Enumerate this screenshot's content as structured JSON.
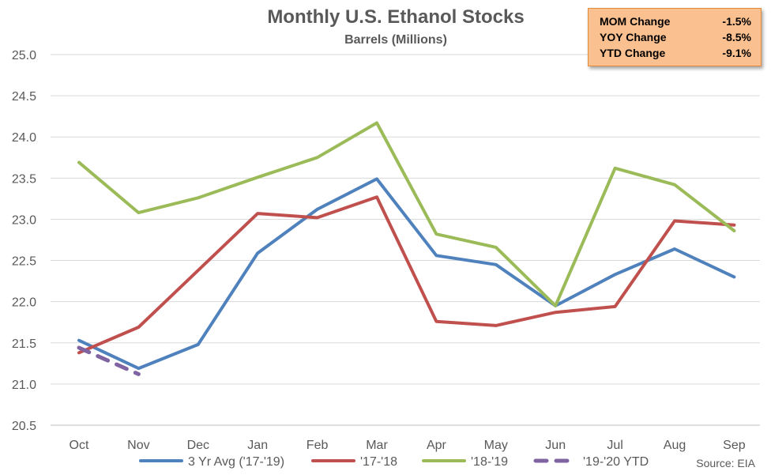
{
  "chart_data": {
    "type": "line",
    "title": "Monthly U.S. Ethanol Stocks",
    "subtitle": "Barrels (Millions)",
    "categories": [
      "Oct",
      "Nov",
      "Dec",
      "Jan",
      "Feb",
      "Mar",
      "Apr",
      "May",
      "Jun",
      "Jul",
      "Aug",
      "Sep"
    ],
    "ylim": [
      20.5,
      25.0
    ],
    "yticks": [
      "20.5",
      "21.0",
      "21.5",
      "22.0",
      "22.5",
      "23.0",
      "23.5",
      "24.0",
      "24.5",
      "25.0"
    ],
    "grid": true,
    "legend_position": "bottom",
    "series": [
      {
        "name": "3 Yr Avg ('17-'19)",
        "color": "#4f81bd",
        "dashed": false,
        "values": [
          21.53,
          21.19,
          21.48,
          22.59,
          23.12,
          23.49,
          22.56,
          22.45,
          21.95,
          22.33,
          22.64,
          22.3
        ]
      },
      {
        "name": "'17-'18",
        "color": "#c0504d",
        "dashed": false,
        "values": [
          21.38,
          21.69,
          22.38,
          23.07,
          23.02,
          23.27,
          21.76,
          21.71,
          21.87,
          21.94,
          22.98,
          22.93
        ]
      },
      {
        "name": "'18-'19",
        "color": "#9bbb59",
        "dashed": false,
        "values": [
          23.69,
          23.08,
          23.26,
          23.51,
          23.75,
          24.17,
          22.82,
          22.66,
          21.95,
          23.62,
          23.42,
          22.86
        ]
      },
      {
        "name": "'19-'20 YTD",
        "color": "#8064a2",
        "dashed": true,
        "values": [
          21.44,
          21.12,
          null,
          null,
          null,
          null,
          null,
          null,
          null,
          null,
          null,
          null
        ]
      }
    ]
  },
  "stats": [
    {
      "label": "MOM Change",
      "value": "-1.5%"
    },
    {
      "label": "YOY Change",
      "value": "-8.5%"
    },
    {
      "label": "YTD Change",
      "value": "-9.1%"
    }
  ],
  "source": "Source: EIA"
}
